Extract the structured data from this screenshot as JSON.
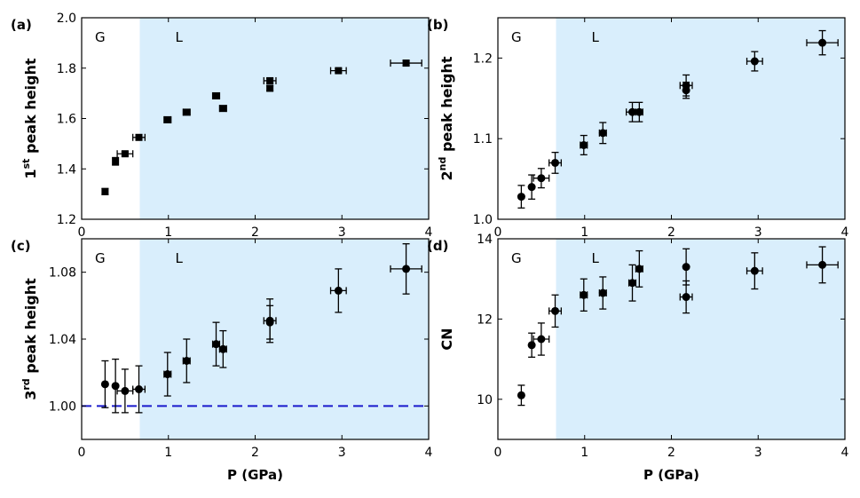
{
  "colors": {
    "liquid_region": "#d9eefc",
    "marker": "#000000",
    "reference_line": "#1a1acc"
  },
  "chart_data": [
    {
      "panel": "(a)",
      "type": "scatter",
      "xlabel": "P (GPa)",
      "ylabel": {
        "pre": "1",
        "sup": "st",
        "post": " peak height"
      },
      "xlim": [
        0,
        4
      ],
      "ylim": [
        1.2,
        2.0
      ],
      "xticks": [
        "0",
        "1",
        "2",
        "3",
        "4"
      ],
      "yticks": [
        "1.2",
        "1.4",
        "1.6",
        "1.8",
        "2.0"
      ],
      "region_boundary_x": 0.67,
      "region_labels": {
        "left": "G",
        "right": "L"
      },
      "marker": "square",
      "points": [
        {
          "x": 0.27,
          "y": 1.31,
          "xerr": 0,
          "yerr": 0.012
        },
        {
          "x": 0.39,
          "y": 1.43,
          "xerr": 0,
          "yerr": 0.015
        },
        {
          "x": 0.5,
          "y": 1.46,
          "xerr": 0.09,
          "yerr": 0.008
        },
        {
          "x": 0.66,
          "y": 1.525,
          "xerr": 0.07,
          "yerr": 0.008
        },
        {
          "x": 0.99,
          "y": 1.595,
          "xerr": 0.04,
          "yerr": 0.008
        },
        {
          "x": 1.21,
          "y": 1.625,
          "xerr": 0.04,
          "yerr": 0.008
        },
        {
          "x": 1.55,
          "y": 1.69,
          "xerr": 0.04,
          "yerr": 0.008
        },
        {
          "x": 1.63,
          "y": 1.64,
          "xerr": 0.04,
          "yerr": 0.008
        },
        {
          "x": 2.17,
          "y": 1.75,
          "xerr": 0.07,
          "yerr": 0.01
        },
        {
          "x": 2.17,
          "y": 1.72,
          "xerr": 0,
          "yerr": 0.01
        },
        {
          "x": 2.96,
          "y": 1.79,
          "xerr": 0.09,
          "yerr": 0.008
        },
        {
          "x": 3.74,
          "y": 1.82,
          "xerr": 0.18,
          "yerr": 0.01
        }
      ]
    },
    {
      "panel": "(b)",
      "type": "scatter",
      "xlabel": "",
      "ylabel": {
        "pre": "2",
        "sup": "nd",
        "post": " peak height"
      },
      "xlim": [
        0,
        4
      ],
      "ylim": [
        1.0,
        1.25
      ],
      "xticks": [
        "0",
        "1",
        "2",
        "3",
        "4"
      ],
      "yticks": [
        "1.0",
        "1.1",
        "1.2"
      ],
      "region_boundary_x": 0.67,
      "region_labels": {
        "left": "G",
        "right": "L"
      },
      "marker": "circle",
      "points": [
        {
          "x": 0.27,
          "y": 1.028,
          "xerr": 0,
          "yerr": 0.014
        },
        {
          "x": 0.39,
          "y": 1.04,
          "xerr": 0,
          "yerr": 0.015
        },
        {
          "x": 0.5,
          "y": 1.051,
          "xerr": 0.09,
          "yerr": 0.012
        },
        {
          "x": 0.66,
          "y": 1.07,
          "xerr": 0.07,
          "yerr": 0.013
        },
        {
          "x": 0.99,
          "y": 1.092,
          "xerr": 0.04,
          "yerr": 0.012
        },
        {
          "x": 1.21,
          "y": 1.107,
          "xerr": 0.04,
          "yerr": 0.013
        },
        {
          "x": 1.55,
          "y": 1.133,
          "xerr": 0.07,
          "yerr": 0.012
        },
        {
          "x": 1.63,
          "y": 1.133,
          "xerr": 0.04,
          "yerr": 0.012
        },
        {
          "x": 2.17,
          "y": 1.166,
          "xerr": 0.07,
          "yerr": 0.013
        },
        {
          "x": 2.17,
          "y": 1.16,
          "xerr": 0,
          "yerr": 0.01
        },
        {
          "x": 2.96,
          "y": 1.196,
          "xerr": 0.09,
          "yerr": 0.012
        },
        {
          "x": 3.74,
          "y": 1.219,
          "xerr": 0.18,
          "yerr": 0.015
        }
      ]
    },
    {
      "panel": "(c)",
      "type": "scatter",
      "xlabel": "P (GPa)",
      "ylabel": {
        "pre": "3",
        "sup": "rd",
        "post": " peak height"
      },
      "xlim": [
        0,
        4
      ],
      "ylim": [
        0.98,
        1.1
      ],
      "xticks": [
        "0",
        "1",
        "2",
        "3",
        "4"
      ],
      "yticks": [
        "1.00",
        "1.04",
        "1.08"
      ],
      "region_boundary_x": 0.67,
      "region_labels": {
        "left": "G",
        "right": "L"
      },
      "reference_line_y": 1.0,
      "marker": "circle",
      "points": [
        {
          "x": 0.27,
          "y": 1.013,
          "xerr": 0,
          "yerr": 0.014
        },
        {
          "x": 0.39,
          "y": 1.012,
          "xerr": 0,
          "yerr": 0.016
        },
        {
          "x": 0.5,
          "y": 1.009,
          "xerr": 0.09,
          "yerr": 0.013
        },
        {
          "x": 0.66,
          "y": 1.01,
          "xerr": 0.07,
          "yerr": 0.014
        },
        {
          "x": 0.99,
          "y": 1.019,
          "xerr": 0.04,
          "yerr": 0.013
        },
        {
          "x": 1.21,
          "y": 1.027,
          "xerr": 0.04,
          "yerr": 0.013
        },
        {
          "x": 1.55,
          "y": 1.037,
          "xerr": 0.04,
          "yerr": 0.013
        },
        {
          "x": 1.63,
          "y": 1.034,
          "xerr": 0.04,
          "yerr": 0.011
        },
        {
          "x": 2.17,
          "y": 1.051,
          "xerr": 0.07,
          "yerr": 0.013
        },
        {
          "x": 2.17,
          "y": 1.05,
          "xerr": 0,
          "yerr": 0.01
        },
        {
          "x": 2.96,
          "y": 1.069,
          "xerr": 0.09,
          "yerr": 0.013
        },
        {
          "x": 3.74,
          "y": 1.082,
          "xerr": 0.18,
          "yerr": 0.015
        }
      ]
    },
    {
      "panel": "(d)",
      "type": "scatter",
      "xlabel": "P (GPa)",
      "ylabel": {
        "pre": "CN",
        "sup": "",
        "post": ""
      },
      "xlim": [
        0,
        4
      ],
      "ylim": [
        9,
        14
      ],
      "xticks": [
        "0",
        "1",
        "2",
        "3",
        "4"
      ],
      "yticks": [
        "10",
        "12",
        "14"
      ],
      "region_boundary_x": 0.67,
      "region_labels": {
        "left": "G",
        "right": "L"
      },
      "marker": "circle",
      "points": [
        {
          "x": 0.27,
          "y": 10.1,
          "xerr": 0,
          "yerr": 0.25
        },
        {
          "x": 0.39,
          "y": 11.35,
          "xerr": 0,
          "yerr": 0.3
        },
        {
          "x": 0.5,
          "y": 11.5,
          "xerr": 0.09,
          "yerr": 0.4
        },
        {
          "x": 0.66,
          "y": 12.2,
          "xerr": 0.07,
          "yerr": 0.4
        },
        {
          "x": 0.99,
          "y": 12.6,
          "xerr": 0.04,
          "yerr": 0.4
        },
        {
          "x": 1.21,
          "y": 12.65,
          "xerr": 0.04,
          "yerr": 0.4
        },
        {
          "x": 1.55,
          "y": 12.9,
          "xerr": 0.04,
          "yerr": 0.45
        },
        {
          "x": 1.63,
          "y": 13.25,
          "xerr": 0.04,
          "yerr": 0.45
        },
        {
          "x": 2.17,
          "y": 13.3,
          "xerr": 0,
          "yerr": 0.45
        },
        {
          "x": 2.17,
          "y": 12.55,
          "xerr": 0.07,
          "yerr": 0.4
        },
        {
          "x": 2.96,
          "y": 13.2,
          "xerr": 0.09,
          "yerr": 0.45
        },
        {
          "x": 3.74,
          "y": 13.35,
          "xerr": 0.18,
          "yerr": 0.45
        }
      ]
    }
  ]
}
